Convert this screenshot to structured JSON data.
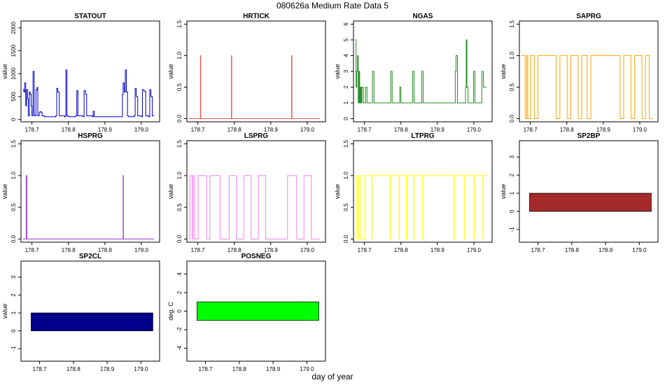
{
  "figure": {
    "title": "080626a   Medium Rate Data 5",
    "xlabel": "day of year"
  },
  "chart_data": [
    {
      "type": "line",
      "title": "STATOUT",
      "ylabel": "value",
      "color": "#0000cc",
      "xlim": [
        178.67,
        179.05
      ],
      "ylim": [
        -50,
        2150
      ],
      "xticks": [
        "178.7",
        "178.8",
        "178.9",
        "179.0"
      ],
      "yticks": [
        "0",
        "500",
        "1000",
        "1500",
        "2000"
      ],
      "x": [
        178.675,
        178.678,
        178.68,
        178.683,
        178.685,
        178.688,
        178.69,
        178.693,
        178.695,
        178.698,
        178.7,
        178.703,
        178.706,
        178.708,
        178.711,
        178.714,
        178.716,
        178.72,
        178.722,
        178.726,
        178.728,
        178.735,
        178.765,
        178.768,
        178.771,
        178.775,
        178.79,
        178.793,
        178.796,
        178.8,
        178.82,
        178.823,
        178.826,
        178.84,
        178.843,
        178.847,
        178.85,
        178.866,
        178.868,
        178.871,
        178.945,
        178.948,
        178.95,
        178.953,
        178.956,
        178.959,
        178.962,
        178.965,
        178.98,
        178.983,
        178.986,
        178.99,
        179.0,
        179.003,
        179.007,
        179.012,
        179.02,
        179.023,
        179.026,
        179.03,
        179.035
      ],
      "values": [
        650,
        600,
        800,
        300,
        650,
        450,
        80,
        600,
        550,
        300,
        80,
        1050,
        100,
        80,
        650,
        700,
        80,
        150,
        170,
        150,
        80,
        60,
        80,
        680,
        600,
        80,
        60,
        1080,
        80,
        60,
        80,
        630,
        80,
        60,
        630,
        550,
        80,
        60,
        180,
        60,
        60,
        550,
        800,
        600,
        1080,
        600,
        80,
        60,
        80,
        680,
        500,
        80,
        60,
        650,
        620,
        80,
        60,
        650,
        500,
        80,
        80
      ]
    },
    {
      "type": "line",
      "title": "HRTICK",
      "ylabel": "value",
      "color": "#e8574f",
      "xlim": [
        178.67,
        179.05
      ],
      "ylim": [
        -0.05,
        1.55
      ],
      "xticks": [
        "178.7",
        "178.8",
        "178.9",
        "179.0"
      ],
      "yticks": [
        "0.0",
        "0.5",
        "1.0",
        "1.5"
      ],
      "x": [
        178.675,
        178.707,
        178.707,
        178.708,
        178.792,
        178.792,
        178.793,
        178.957,
        178.957,
        178.958,
        179.035
      ],
      "values": [
        0,
        0,
        1,
        0,
        0,
        1,
        0,
        0,
        1,
        0,
        0
      ]
    },
    {
      "type": "line",
      "title": "NGAS",
      "ylabel": "value",
      "color": "#228b22",
      "xlim": [
        178.67,
        179.05
      ],
      "ylim": [
        -0.2,
        6.2
      ],
      "xticks": [
        "178.7",
        "178.8",
        "178.9",
        "179.0"
      ],
      "yticks": [
        "0",
        "1",
        "2",
        "3",
        "4",
        "5",
        "6"
      ],
      "x": [
        178.675,
        178.677,
        178.679,
        178.681,
        178.683,
        178.685,
        178.687,
        178.689,
        178.691,
        178.693,
        178.697,
        178.703,
        178.707,
        178.72,
        178.722,
        178.726,
        178.77,
        178.772,
        178.776,
        178.795,
        178.797,
        178.8,
        178.83,
        178.832,
        178.836,
        178.855,
        178.857,
        178.861,
        178.947,
        178.949,
        178.951,
        178.955,
        178.975,
        178.977,
        178.979,
        178.981,
        178.984,
        178.997,
        178.999,
        179.003,
        179.02,
        179.022,
        179.026,
        179.035
      ],
      "values": [
        5,
        2,
        3,
        4,
        1,
        3,
        1,
        2,
        1,
        2,
        1,
        2,
        1,
        1,
        3,
        1,
        1,
        3,
        1,
        1,
        2,
        1,
        1,
        3,
        1,
        1,
        3,
        1,
        1,
        3,
        4,
        1,
        1,
        2,
        5,
        2,
        1,
        1,
        3,
        1,
        1,
        3,
        2,
        2
      ]
    },
    {
      "type": "line",
      "title": "SAPRG",
      "ylabel": "value",
      "color": "#ffa500",
      "xlim": [
        178.67,
        179.05
      ],
      "ylim": [
        -0.05,
        1.55
      ],
      "xticks": [
        "178.7",
        "178.8",
        "178.9",
        "179.0"
      ],
      "yticks": [
        "0.0",
        "0.5",
        "1.0",
        "1.5"
      ],
      "x": [
        178.675,
        178.685,
        178.686,
        178.689,
        178.69,
        178.692,
        178.693,
        178.7,
        178.701,
        178.71,
        178.711,
        178.72,
        178.721,
        178.77,
        178.771,
        178.78,
        178.781,
        178.8,
        178.801,
        178.81,
        178.811,
        178.83,
        178.831,
        178.84,
        178.841,
        178.855,
        178.856,
        178.865,
        178.866,
        178.945,
        178.946,
        178.955,
        178.956,
        178.975,
        178.976,
        178.985,
        178.986,
        179.005,
        179.006,
        179.015,
        179.016,
        179.025,
        179.026,
        179.035
      ],
      "values": [
        1,
        1,
        0,
        0,
        1,
        1,
        0,
        0,
        1,
        1,
        0,
        0,
        1,
        1,
        0,
        0,
        1,
        1,
        0,
        0,
        1,
        1,
        0,
        0,
        1,
        1,
        0,
        0,
        1,
        1,
        0,
        0,
        1,
        1,
        0,
        0,
        1,
        1,
        0,
        0,
        1,
        1,
        0,
        0
      ]
    },
    {
      "type": "line",
      "title": "HSPRG",
      "ylabel": "value",
      "color": "#a040e0",
      "xlim": [
        178.67,
        179.05
      ],
      "ylim": [
        -0.05,
        1.55
      ],
      "xticks": [
        "178.7",
        "178.8",
        "178.9",
        "179.0"
      ],
      "yticks": [
        "0.0",
        "0.5",
        "1.0",
        "1.5"
      ],
      "x": [
        178.675,
        178.684,
        178.684,
        178.686,
        178.686,
        178.95,
        178.95,
        178.951,
        178.951,
        179.035
      ],
      "values": [
        0,
        0,
        1,
        1,
        0,
        0,
        1,
        1,
        0,
        0
      ]
    },
    {
      "type": "line",
      "title": "LSPRG",
      "ylabel": "value",
      "color": "#ee82ee",
      "xlim": [
        178.67,
        179.05
      ],
      "ylim": [
        -0.05,
        1.55
      ],
      "xticks": [
        "178.7",
        "178.8",
        "178.9",
        "179.0"
      ],
      "yticks": [
        "0.0",
        "0.5",
        "1.0",
        "1.5"
      ],
      "x": [
        178.675,
        178.677,
        178.678,
        178.683,
        178.684,
        178.686,
        178.687,
        178.69,
        178.691,
        178.7,
        178.701,
        178.723,
        178.724,
        178.732,
        178.733,
        178.76,
        178.761,
        178.785,
        178.786,
        178.805,
        178.806,
        178.825,
        178.826,
        178.845,
        178.846,
        178.865,
        178.866,
        178.885,
        178.886,
        178.945,
        178.946,
        178.97,
        178.971,
        178.99,
        178.991,
        179.01,
        179.011,
        179.035
      ],
      "values": [
        0,
        0,
        1,
        1,
        0,
        0,
        1,
        1,
        0,
        0,
        1,
        1,
        0,
        0,
        1,
        1,
        0,
        0,
        1,
        1,
        0,
        0,
        1,
        1,
        0,
        0,
        1,
        1,
        0,
        0,
        1,
        1,
        0,
        0,
        1,
        1,
        0,
        0
      ]
    },
    {
      "type": "line",
      "title": "LTPRG",
      "ylabel": "value",
      "color": "#ffff00",
      "xlim": [
        178.67,
        179.05
      ],
      "ylim": [
        -0.05,
        1.55
      ],
      "xticks": [
        "178.7",
        "178.8",
        "178.9",
        "179.0"
      ],
      "yticks": [
        "0.0",
        "0.5",
        "1.0",
        "1.5"
      ],
      "x": [
        178.675,
        178.677,
        178.678,
        178.683,
        178.684,
        178.686,
        178.687,
        178.69,
        178.691,
        178.7,
        178.701,
        178.72,
        178.721,
        178.77,
        178.771,
        178.795,
        178.796,
        178.815,
        178.816,
        178.835,
        178.836,
        178.86,
        178.861,
        178.945,
        178.946,
        178.975,
        178.976,
        179.0,
        179.001,
        179.025,
        179.026,
        179.035
      ],
      "values": [
        0,
        0,
        1,
        1,
        0,
        0,
        1,
        1,
        0,
        0,
        1,
        0,
        1,
        0,
        1,
        0,
        1,
        0,
        1,
        0,
        1,
        0,
        1,
        0,
        1,
        0,
        1,
        0,
        1,
        0,
        1,
        1
      ]
    },
    {
      "type": "area",
      "title": "SP2BP",
      "ylabel": "value",
      "color": "#a52a2a",
      "xlim": [
        178.645,
        179.055
      ],
      "ylim": [
        -1.7,
        3.9
      ],
      "xticks": [
        "178.7",
        "178.8",
        "178.9",
        "179.0"
      ],
      "yticks": [
        "-1",
        "0",
        "1",
        "2",
        "3"
      ],
      "band": {
        "x": [
          178.675,
          179.035
        ],
        "low": 0,
        "high": 1
      }
    },
    {
      "type": "area",
      "title": "SP2CL",
      "ylabel": "value",
      "color": "#00008b",
      "xlim": [
        178.645,
        179.055
      ],
      "ylim": [
        -1.7,
        3.9
      ],
      "xticks": [
        "178.7",
        "178.8",
        "178.9",
        "179.0"
      ],
      "yticks": [
        "-1",
        "0",
        "1",
        "2",
        "3"
      ],
      "band": {
        "x": [
          178.675,
          179.035
        ],
        "low": 0,
        "high": 1
      }
    },
    {
      "type": "area",
      "title": "POSNEG",
      "ylabel": "deg. C",
      "color": "#00ff00",
      "xlim": [
        178.645,
        179.055
      ],
      "ylim": [
        -5.4,
        5.4
      ],
      "xticks": [
        "178.7",
        "178.8",
        "178.9",
        "179.0"
      ],
      "yticks": [
        "-4",
        "-2",
        "0",
        "2",
        "4"
      ],
      "band": {
        "x": [
          178.675,
          179.035
        ],
        "low": -1,
        "high": 1
      }
    }
  ]
}
